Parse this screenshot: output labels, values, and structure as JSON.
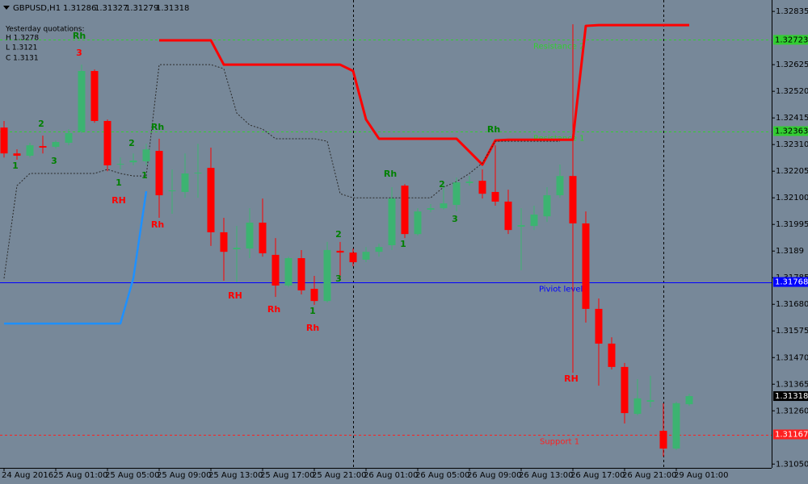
{
  "chart_data": {
    "type": "candlestick",
    "symbol": "GBPUSD,H1",
    "quote": [
      1.31286,
      1.31327,
      1.31279,
      1.31318
    ],
    "info": {
      "title": "Yesterday quotations:",
      "lines": [
        "H 1.3278",
        "L 1.3121",
        "C 1.3131"
      ]
    },
    "categories": [
      "24 Aug 2016",
      null,
      null,
      null,
      "25 Aug 01:00",
      null,
      null,
      null,
      "25 Aug 05:00",
      null,
      null,
      null,
      "25 Aug 09:00",
      null,
      null,
      null,
      "25 Aug 13:00",
      null,
      null,
      null,
      "25 Aug 17:00",
      null,
      null,
      null,
      "25 Aug 21:00",
      null,
      null,
      null,
      "26 Aug 01:00",
      null,
      null,
      null,
      "26 Aug 05:00",
      null,
      null,
      null,
      "26 Aug 09:00",
      null,
      null,
      null,
      "26 Aug 13:00",
      null,
      null,
      null,
      "26 Aug 17:00",
      null,
      null,
      null,
      "26 Aug 21:00",
      null,
      null,
      null,
      "29 Aug 01:00",
      null
    ],
    "open": [
      1.32377,
      1.32275,
      1.32266,
      1.32304,
      1.32301,
      1.32317,
      1.32361,
      1.326,
      1.32403,
      1.32231,
      1.3224,
      1.32244,
      1.32285,
      1.32126,
      1.32123,
      1.32196,
      1.32218,
      1.31964,
      1.31897,
      1.319,
      1.32002,
      1.31875,
      1.31754,
      1.31862,
      1.31741,
      1.31693,
      1.31891,
      1.31884,
      1.31856,
      1.31887,
      1.31913,
      1.32148,
      1.31957,
      1.32053,
      1.32059,
      1.32072,
      1.32158,
      1.32167,
      1.32123,
      1.32085,
      1.31986,
      1.31989,
      1.32027,
      1.3211,
      1.32186,
      1.31999,
      1.31662,
      1.31525,
      1.31433,
      1.31248,
      1.31296,
      1.31181,
      1.31111,
      1.31286
    ],
    "high": [
      1.32403,
      1.32291,
      1.32317,
      1.32345,
      1.32326,
      1.32371,
      1.32625,
      1.32606,
      1.32409,
      1.32259,
      1.32275,
      1.32313,
      1.32333,
      1.32212,
      1.32275,
      1.32313,
      1.32298,
      1.32021,
      1.31989,
      1.32059,
      1.32097,
      1.31941,
      1.31868,
      1.31894,
      1.31792,
      1.31926,
      1.31926,
      1.319,
      1.31906,
      1.31919,
      1.32142,
      1.32154,
      1.32059,
      1.32075,
      1.32154,
      1.3218,
      1.32186,
      1.32212,
      1.32307,
      1.32132,
      1.32059,
      1.32069,
      1.32142,
      1.32231,
      1.32784,
      1.32046,
      1.31703,
      1.3155,
      1.31449,
      1.31385,
      1.31398,
      1.3129,
      1.31296,
      1.31327
    ],
    "low": [
      1.32259,
      1.3225,
      1.32259,
      1.32275,
      1.32294,
      1.32307,
      1.32355,
      1.32396,
      1.32205,
      1.32212,
      1.32228,
      1.32228,
      1.32021,
      1.32037,
      1.321,
      1.321,
      1.3191,
      1.31773,
      1.31767,
      1.31862,
      1.31868,
      1.31709,
      1.31747,
      1.31719,
      1.31678,
      1.31687,
      1.31782,
      1.3183,
      1.31846,
      1.31868,
      1.31894,
      1.31941,
      1.31951,
      1.32043,
      1.32053,
      1.32046,
      1.32148,
      1.32097,
      1.32069,
      1.31957,
      1.31814,
      1.31973,
      1.32005,
      1.321,
      1.3141,
      1.31608,
      1.31359,
      1.31423,
      1.3121,
      1.31242,
      1.31274,
      1.3108,
      1.31105,
      1.31279
    ],
    "close": [
      1.32275,
      1.32266,
      1.32307,
      1.32298,
      1.3232,
      1.32355,
      1.326,
      1.32403,
      1.32228,
      1.32234,
      1.32247,
      1.32291,
      1.3211,
      1.32129,
      1.32196,
      1.32199,
      1.31964,
      1.31887,
      1.31903,
      1.32002,
      1.31881,
      1.31754,
      1.31862,
      1.31735,
      1.31693,
      1.31894,
      1.31884,
      1.31846,
      1.31887,
      1.31906,
      1.32097,
      1.31957,
      1.32046,
      1.32059,
      1.32078,
      1.32161,
      1.32164,
      1.32116,
      1.32085,
      1.31973,
      1.31992,
      1.32034,
      1.3211,
      1.32186,
      1.31999,
      1.31662,
      1.31525,
      1.31433,
      1.31251,
      1.31309,
      1.31302,
      1.31111,
      1.3129,
      1.31318
    ],
    "up_color": "#3cb371",
    "down_color": "#ff0000",
    "indicators": [
      {
        "color": "#ff0000",
        "width": 3,
        "dashed": false,
        "values": [
          null,
          null,
          null,
          null,
          null,
          null,
          null,
          null,
          null,
          null,
          null,
          null,
          1.32721,
          1.32721,
          1.32721,
          1.32721,
          1.32721,
          1.32625,
          1.32625,
          1.32625,
          1.32625,
          1.32625,
          1.32625,
          1.32625,
          1.32625,
          1.32625,
          1.32625,
          1.326,
          1.32409,
          1.32333,
          1.32333,
          1.32333,
          1.32333,
          1.32333,
          1.32333,
          1.32333,
          1.32282,
          1.32231,
          1.32326,
          1.32329,
          1.32329,
          1.32329,
          1.32329,
          1.32329,
          1.32329,
          1.32778,
          1.32781,
          1.32781,
          1.32781,
          1.32781,
          1.32781,
          1.32781,
          1.32781,
          1.32781
        ]
      },
      {
        "color": "#1e90ff",
        "width": 2.5,
        "dashed": false,
        "values": [
          1.31604,
          1.31604,
          1.31604,
          1.31604,
          1.31604,
          1.31604,
          1.31604,
          1.31604,
          1.31604,
          1.31604,
          1.31782,
          1.32126,
          null,
          null,
          null,
          null,
          null,
          null,
          null,
          null,
          null,
          null,
          null,
          null,
          null,
          null,
          null,
          null,
          null,
          null,
          null,
          null,
          null,
          null,
          null,
          null,
          null,
          null,
          null,
          null,
          null,
          null,
          null,
          null,
          null,
          null,
          null,
          null,
          null,
          null,
          null,
          null,
          null,
          null
        ]
      },
      {
        "color": "#2a2a2a",
        "width": 1,
        "dashed": true,
        "values": [
          1.31782,
          1.32148,
          1.32196,
          1.32196,
          1.32196,
          1.32196,
          1.32196,
          1.32196,
          1.32212,
          1.32196,
          1.32186,
          1.32186,
          1.32625,
          1.32625,
          1.32625,
          1.32625,
          1.32625,
          1.32609,
          1.32434,
          1.32387,
          1.32371,
          1.32333,
          1.32333,
          1.32333,
          1.32333,
          1.32323,
          1.32116,
          1.321,
          1.321,
          1.321,
          1.321,
          1.321,
          1.321,
          1.321,
          1.32142,
          1.32164,
          1.32196,
          1.32237,
          1.32323,
          1.32323,
          1.32323,
          1.32323,
          1.32323,
          1.32323,
          null,
          null,
          null,
          null,
          null,
          null,
          null,
          null,
          null,
          null
        ]
      }
    ],
    "levels": [
      {
        "name": "Resistance 2",
        "value": 1.32723,
        "color": "#32cd32",
        "text_color": "#000000",
        "dashed": true
      },
      {
        "name": "Resistance 1",
        "value": 1.32363,
        "color": "#32cd32",
        "text_color": "#000000",
        "dashed": true
      },
      {
        "name": "Piviot level",
        "value": 1.31768,
        "color": "#0000ff",
        "text_color": "#ffffff",
        "dashed": false
      },
      {
        "name": "Support 1",
        "value": 1.31167,
        "color": "#ff2020",
        "text_color": "#ffffff",
        "dashed": true
      }
    ],
    "last_price": 1.31318,
    "annotations": [
      {
        "text": "Rh",
        "color": "#008000"
      },
      {
        "text": "3",
        "color": "#ff0000"
      },
      {
        "text": "2",
        "color": "#008000"
      },
      {
        "text": "3",
        "color": "#008000"
      },
      {
        "text": "1",
        "color": "#008000"
      },
      {
        "text": "Rh",
        "color": "#008000"
      },
      {
        "text": "2",
        "color": "#008000"
      },
      {
        "text": "1",
        "color": "#008000"
      },
      {
        "text": "1",
        "color": "#008000"
      },
      {
        "text": "RH",
        "color": "#ff0000"
      },
      {
        "text": "Rh",
        "color": "#ff0000"
      },
      {
        "text": "RH",
        "color": "#ff0000"
      },
      {
        "text": "Rh",
        "color": "#ff0000"
      },
      {
        "text": "1",
        "color": "#008000"
      },
      {
        "text": "Rh",
        "color": "#ff0000"
      },
      {
        "text": "2",
        "color": "#008000"
      },
      {
        "text": "3",
        "color": "#008000"
      },
      {
        "text": "Rh",
        "color": "#008000"
      },
      {
        "text": "1",
        "color": "#008000"
      },
      {
        "text": "2",
        "color": "#008000"
      },
      {
        "text": "3",
        "color": "#008000"
      },
      {
        "text": "Rh",
        "color": "#008000"
      },
      {
        "text": "RH",
        "color": "#ff0000"
      }
    ],
    "ylim": [
      1.31035,
      1.3288
    ],
    "yticks": [
      1.32835,
      1.32625,
      {
        "value": 1.3252,
        "label": "1.32520"
      },
      1.32415,
      {
        "value": 1.3231,
        "label": "1.32310"
      },
      1.32205,
      {
        "value": 1.321,
        "label": "1.32100"
      },
      1.31995,
      1.3189,
      1.31785,
      {
        "value": 1.3168,
        "label": "1.31680"
      },
      1.31575,
      {
        "value": 1.3147,
        "label": "1.31470"
      },
      1.31365,
      {
        "value": 1.3126,
        "label": "1.31260"
      },
      {
        "value": 1.3105,
        "label": "1.31050"
      }
    ]
  }
}
